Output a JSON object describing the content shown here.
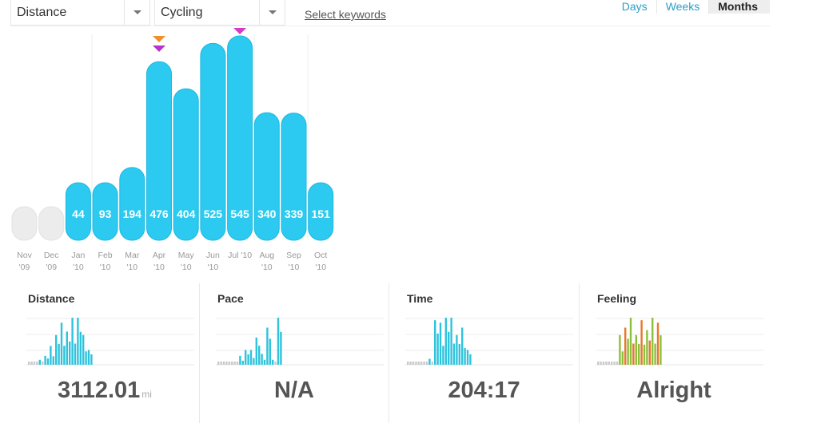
{
  "toolbar": {
    "metric_select": "Distance",
    "activity_select": "Cycling",
    "keywords_link": "Select keywords",
    "range_tabs": [
      {
        "label": "Days",
        "active": false
      },
      {
        "label": "Weeks",
        "active": false
      },
      {
        "label": "Months",
        "active": true
      }
    ]
  },
  "chart_data": {
    "type": "bar",
    "categories": [
      [
        "Nov",
        "'09"
      ],
      [
        "Dec",
        "'09"
      ],
      [
        "Jan",
        "'10"
      ],
      [
        "Feb",
        "'10"
      ],
      [
        "Mar",
        "'10"
      ],
      [
        "Apr",
        "'10"
      ],
      [
        "May",
        "'10"
      ],
      [
        "Jun",
        "'10"
      ],
      [
        "Jul '10",
        ""
      ],
      [
        "Aug",
        "'10"
      ],
      [
        "Sep",
        "'10"
      ],
      [
        "Oct",
        "'10"
      ]
    ],
    "values": [
      null,
      null,
      44,
      93,
      194,
      476,
      404,
      525,
      545,
      340,
      339,
      151
    ],
    "labels": [
      "",
      "",
      "44",
      "93",
      "194",
      "476",
      "404",
      "525",
      "545",
      "340",
      "339",
      "151"
    ],
    "markers": [
      {
        "category_index": 5,
        "colors": [
          "#f0902a",
          "#b436c8"
        ]
      },
      {
        "category_index": 8,
        "colors": [
          "#d43cc8"
        ]
      }
    ],
    "colors": {
      "bar": "#2ccaf0",
      "empty": "#ececec"
    }
  },
  "panels": [
    {
      "title": "Distance",
      "value": "3112.01",
      "unit": "mi",
      "spark": [
        0.06,
        0.06,
        0.1,
        0.18,
        0.38,
        0.6,
        0.85,
        0.67,
        0.95,
        0.95,
        0.6,
        0.3
      ],
      "spark_colors": "blue"
    },
    {
      "title": "Pace",
      "value": "N/A",
      "unit": "",
      "spark": [
        0.06,
        0.06,
        0.06,
        0.06,
        0.18,
        0.3,
        0.3,
        0.55,
        0.22,
        0.75,
        0.1,
        0.95
      ],
      "spark_colors": "blue"
    },
    {
      "title": "Time",
      "value": "204:17",
      "unit": "",
      "spark": [
        0.06,
        0.06,
        0.06,
        0.06,
        0.12,
        0.9,
        0.85,
        0.95,
        0.95,
        0.6,
        0.75,
        0.3
      ],
      "spark_colors": "blue"
    },
    {
      "title": "Feeling",
      "value": "Alright",
      "unit": "",
      "spark": [
        0.06,
        0.06,
        0.06,
        0.06,
        0.6,
        0.75,
        0.95,
        0.6,
        0.9,
        0.7,
        0.95,
        0.85
      ],
      "spark_colors": "feeling"
    }
  ]
}
